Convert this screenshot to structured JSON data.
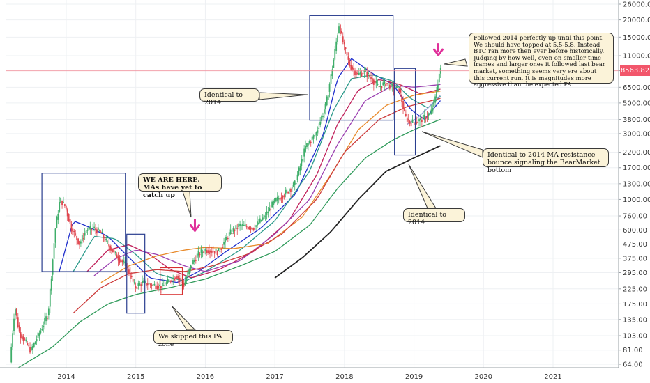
{
  "chart_data": {
    "type": "line",
    "title": "",
    "xlabel": "",
    "ylabel": "",
    "y_scale": "log",
    "ylim": [
      60,
      28000
    ],
    "xlim": [
      2013.1,
      2021.9
    ],
    "y_ticks": [
      "26000.00",
      "20000.00",
      "15000.00",
      "11000.00",
      "8563.82",
      "6500.00",
      "5000.00",
      "3800.00",
      "3000.00",
      "2200.00",
      "1700.00",
      "1300.00",
      "1000.00",
      "760.00",
      "600.00",
      "475.00",
      "375.00",
      "295.00",
      "225.00",
      "175.00",
      "135.00",
      "103.00",
      "81.00",
      "64.00"
    ],
    "y_tick_values": [
      26000,
      20000,
      15000,
      11000,
      8563.82,
      6500,
      5000,
      3800,
      3000,
      2200,
      1700,
      1300,
      1000,
      760,
      600,
      475,
      375,
      295,
      225,
      175,
      135,
      103,
      81,
      64
    ],
    "x_ticks": [
      "2014",
      "2015",
      "2016",
      "2017",
      "2018",
      "2019",
      "2020",
      "2021"
    ],
    "x_tick_values": [
      2014,
      2015,
      2016,
      2017,
      2018,
      2019,
      2020,
      2021
    ],
    "current_price": "8563.82",
    "current_price_value": 8563.82,
    "price_anchors": [
      [
        2013.2,
        66
      ],
      [
        2013.27,
        170
      ],
      [
        2013.33,
        110
      ],
      [
        2013.5,
        80
      ],
      [
        2013.65,
        115
      ],
      [
        2013.75,
        150
      ],
      [
        2013.85,
        600
      ],
      [
        2013.92,
        1000
      ],
      [
        2014.0,
        880
      ],
      [
        2014.08,
        620
      ],
      [
        2014.2,
        480
      ],
      [
        2014.3,
        600
      ],
      [
        2014.4,
        620
      ],
      [
        2014.5,
        580
      ],
      [
        2014.6,
        480
      ],
      [
        2014.75,
        380
      ],
      [
        2014.87,
        330
      ],
      [
        2015.0,
        230
      ],
      [
        2015.1,
        250
      ],
      [
        2015.25,
        240
      ],
      [
        2015.4,
        235
      ],
      [
        2015.5,
        260
      ],
      [
        2015.6,
        280
      ],
      [
        2015.7,
        240
      ],
      [
        2015.8,
        330
      ],
      [
        2015.9,
        400
      ],
      [
        2016.0,
        430
      ],
      [
        2016.2,
        420
      ],
      [
        2016.35,
        560
      ],
      [
        2016.5,
        650
      ],
      [
        2016.7,
        620
      ],
      [
        2016.85,
        740
      ],
      [
        2017.0,
        960
      ],
      [
        2017.15,
        1100
      ],
      [
        2017.3,
        1300
      ],
      [
        2017.45,
        2400
      ],
      [
        2017.6,
        3000
      ],
      [
        2017.75,
        5000
      ],
      [
        2017.85,
        10000
      ],
      [
        2017.93,
        18500
      ],
      [
        2018.0,
        13000
      ],
      [
        2018.08,
        9500
      ],
      [
        2018.2,
        8000
      ],
      [
        2018.3,
        8500
      ],
      [
        2018.4,
        7500
      ],
      [
        2018.5,
        6500
      ],
      [
        2018.6,
        7000
      ],
      [
        2018.7,
        6500
      ],
      [
        2018.8,
        6300
      ],
      [
        2018.88,
        4000
      ],
      [
        2018.95,
        3600
      ],
      [
        2019.05,
        3650
      ],
      [
        2019.15,
        3900
      ],
      [
        2019.25,
        4200
      ],
      [
        2019.32,
        5500
      ],
      [
        2019.38,
        8600
      ]
    ],
    "moving_averages": [
      {
        "color": "#1f2ecc",
        "anchors": [
          [
            2013.9,
            300
          ],
          [
            2014.1,
            700
          ],
          [
            2014.3,
            640
          ],
          [
            2014.6,
            540
          ],
          [
            2014.9,
            380
          ],
          [
            2015.2,
            270
          ],
          [
            2015.6,
            250
          ],
          [
            2015.9,
            300
          ],
          [
            2016.3,
            420
          ],
          [
            2016.8,
            620
          ],
          [
            2017.3,
            1100
          ],
          [
            2017.7,
            3000
          ],
          [
            2017.9,
            7500
          ],
          [
            2018.1,
            10500
          ],
          [
            2018.4,
            8200
          ],
          [
            2018.7,
            6800
          ],
          [
            2018.95,
            4500
          ],
          [
            2019.15,
            3800
          ],
          [
            2019.38,
            5200
          ]
        ]
      },
      {
        "color": "#2b9a8a",
        "anchors": [
          [
            2014.1,
            300
          ],
          [
            2014.4,
            540
          ],
          [
            2014.7,
            520
          ],
          [
            2015.0,
            400
          ],
          [
            2015.3,
            290
          ],
          [
            2015.7,
            255
          ],
          [
            2016.0,
            300
          ],
          [
            2016.5,
            430
          ],
          [
            2017.0,
            700
          ],
          [
            2017.5,
            1600
          ],
          [
            2017.85,
            4500
          ],
          [
            2018.1,
            7500
          ],
          [
            2018.4,
            8000
          ],
          [
            2018.7,
            7200
          ],
          [
            2018.95,
            5400
          ],
          [
            2019.2,
            4600
          ],
          [
            2019.38,
            5600
          ]
        ]
      },
      {
        "color": "#c0205a",
        "anchors": [
          [
            2014.3,
            300
          ],
          [
            2014.6,
            430
          ],
          [
            2014.9,
            470
          ],
          [
            2015.2,
            400
          ],
          [
            2015.5,
            310
          ],
          [
            2015.8,
            270
          ],
          [
            2016.2,
            310
          ],
          [
            2016.7,
            420
          ],
          [
            2017.2,
            700
          ],
          [
            2017.6,
            1500
          ],
          [
            2017.9,
            3500
          ],
          [
            2018.2,
            6200
          ],
          [
            2018.5,
            7400
          ],
          [
            2018.8,
            6800
          ],
          [
            2019.1,
            5800
          ],
          [
            2019.38,
            6300
          ]
        ]
      },
      {
        "color": "#9b3fb0",
        "anchors": [
          [
            2014.4,
            280
          ],
          [
            2014.7,
            370
          ],
          [
            2015.0,
            430
          ],
          [
            2015.3,
            400
          ],
          [
            2015.7,
            330
          ],
          [
            2016.0,
            300
          ],
          [
            2016.5,
            360
          ],
          [
            2017.0,
            560
          ],
          [
            2017.5,
            1000
          ],
          [
            2017.9,
            2500
          ],
          [
            2018.3,
            5200
          ],
          [
            2018.7,
            6700
          ],
          [
            2019.0,
            6500
          ],
          [
            2019.38,
            6800
          ]
        ]
      },
      {
        "color": "#e88a2a",
        "anchors": [
          [
            2014.5,
            250
          ],
          [
            2014.9,
            330
          ],
          [
            2015.3,
            390
          ],
          [
            2015.7,
            430
          ],
          [
            2016.0,
            450
          ],
          [
            2016.4,
            440
          ],
          [
            2016.9,
            480
          ],
          [
            2017.4,
            750
          ],
          [
            2017.8,
            1500
          ],
          [
            2018.2,
            3200
          ],
          [
            2018.6,
            4800
          ],
          [
            2019.0,
            5700
          ],
          [
            2019.38,
            6100
          ]
        ]
      },
      {
        "color": "#cc3b3b",
        "anchors": [
          [
            2014.1,
            150
          ],
          [
            2014.5,
            230
          ],
          [
            2014.9,
            290
          ],
          [
            2015.3,
            310
          ],
          [
            2015.7,
            300
          ],
          [
            2016.1,
            330
          ],
          [
            2016.6,
            400
          ],
          [
            2017.1,
            560
          ],
          [
            2017.6,
            1000
          ],
          [
            2018.0,
            2200
          ],
          [
            2018.5,
            3800
          ],
          [
            2018.9,
            4700
          ],
          [
            2019.38,
            5400
          ]
        ]
      },
      {
        "color": "#9b9fd9",
        "anchors": [
          [
            2018.9,
            3500
          ],
          [
            2019.05,
            3900
          ],
          [
            2019.2,
            4600
          ],
          [
            2019.38,
            5700
          ]
        ]
      },
      {
        "color": "#2f9a5a",
        "anchors": [
          [
            2013.3,
            60
          ],
          [
            2013.8,
            85
          ],
          [
            2014.2,
            130
          ],
          [
            2014.6,
            175
          ],
          [
            2015.0,
            205
          ],
          [
            2015.5,
            230
          ],
          [
            2016.0,
            265
          ],
          [
            2016.5,
            330
          ],
          [
            2017.0,
            420
          ],
          [
            2017.5,
            650
          ],
          [
            2017.9,
            1200
          ],
          [
            2018.3,
            2000
          ],
          [
            2018.7,
            2700
          ],
          [
            2019.0,
            3200
          ],
          [
            2019.38,
            3800
          ]
        ]
      },
      {
        "color": "#222222",
        "anchors": [
          [
            2017.0,
            270
          ],
          [
            2017.4,
            380
          ],
          [
            2017.8,
            580
          ],
          [
            2018.2,
            1000
          ],
          [
            2018.6,
            1600
          ],
          [
            2019.0,
            2000
          ],
          [
            2019.38,
            2450
          ]
        ]
      }
    ],
    "arrows": [
      {
        "x": 2015.85,
        "y": 650,
        "color": "#e0309a"
      },
      {
        "x": 2019.35,
        "y": 12200,
        "color": "#e0309a"
      }
    ],
    "boxes": [
      {
        "x0": 2013.65,
        "x1": 2014.85,
        "y0": 300,
        "y1": 1550,
        "color": "#2a3e8f"
      },
      {
        "x0": 2014.87,
        "x1": 2015.13,
        "y0": 150,
        "y1": 560,
        "color": "#2a3e8f"
      },
      {
        "x0": 2015.35,
        "x1": 2015.67,
        "y0": 205,
        "y1": 320,
        "color": "#d83030"
      },
      {
        "x0": 2017.5,
        "x1": 2018.7,
        "y0": 3750,
        "y1": 21500,
        "color": "#2a3e8f"
      },
      {
        "x0": 2018.72,
        "x1": 2019.02,
        "y0": 2100,
        "y1": 8900,
        "color": "#2a3e8f"
      }
    ],
    "annotations": [
      "Identical to 2014",
      "Followed 2014 perfectly up until this point. We should have topped at 5.5-5.8. Instead BTC ran more then ever before historically. Judging by how well, even on smaller time frames and larger ones it followed last bear market, something seems very ere about this current run. It is magnitudes more aggressive than the expected PA.",
      "WE ARE HERE.\nMAs have yet to catch up",
      "Identical to 2014 MA resistance bounce signaling the BearMarket bottom",
      "Identical to 2014",
      "We skipped this PA zone"
    ],
    "grid": true,
    "legend": "none"
  }
}
